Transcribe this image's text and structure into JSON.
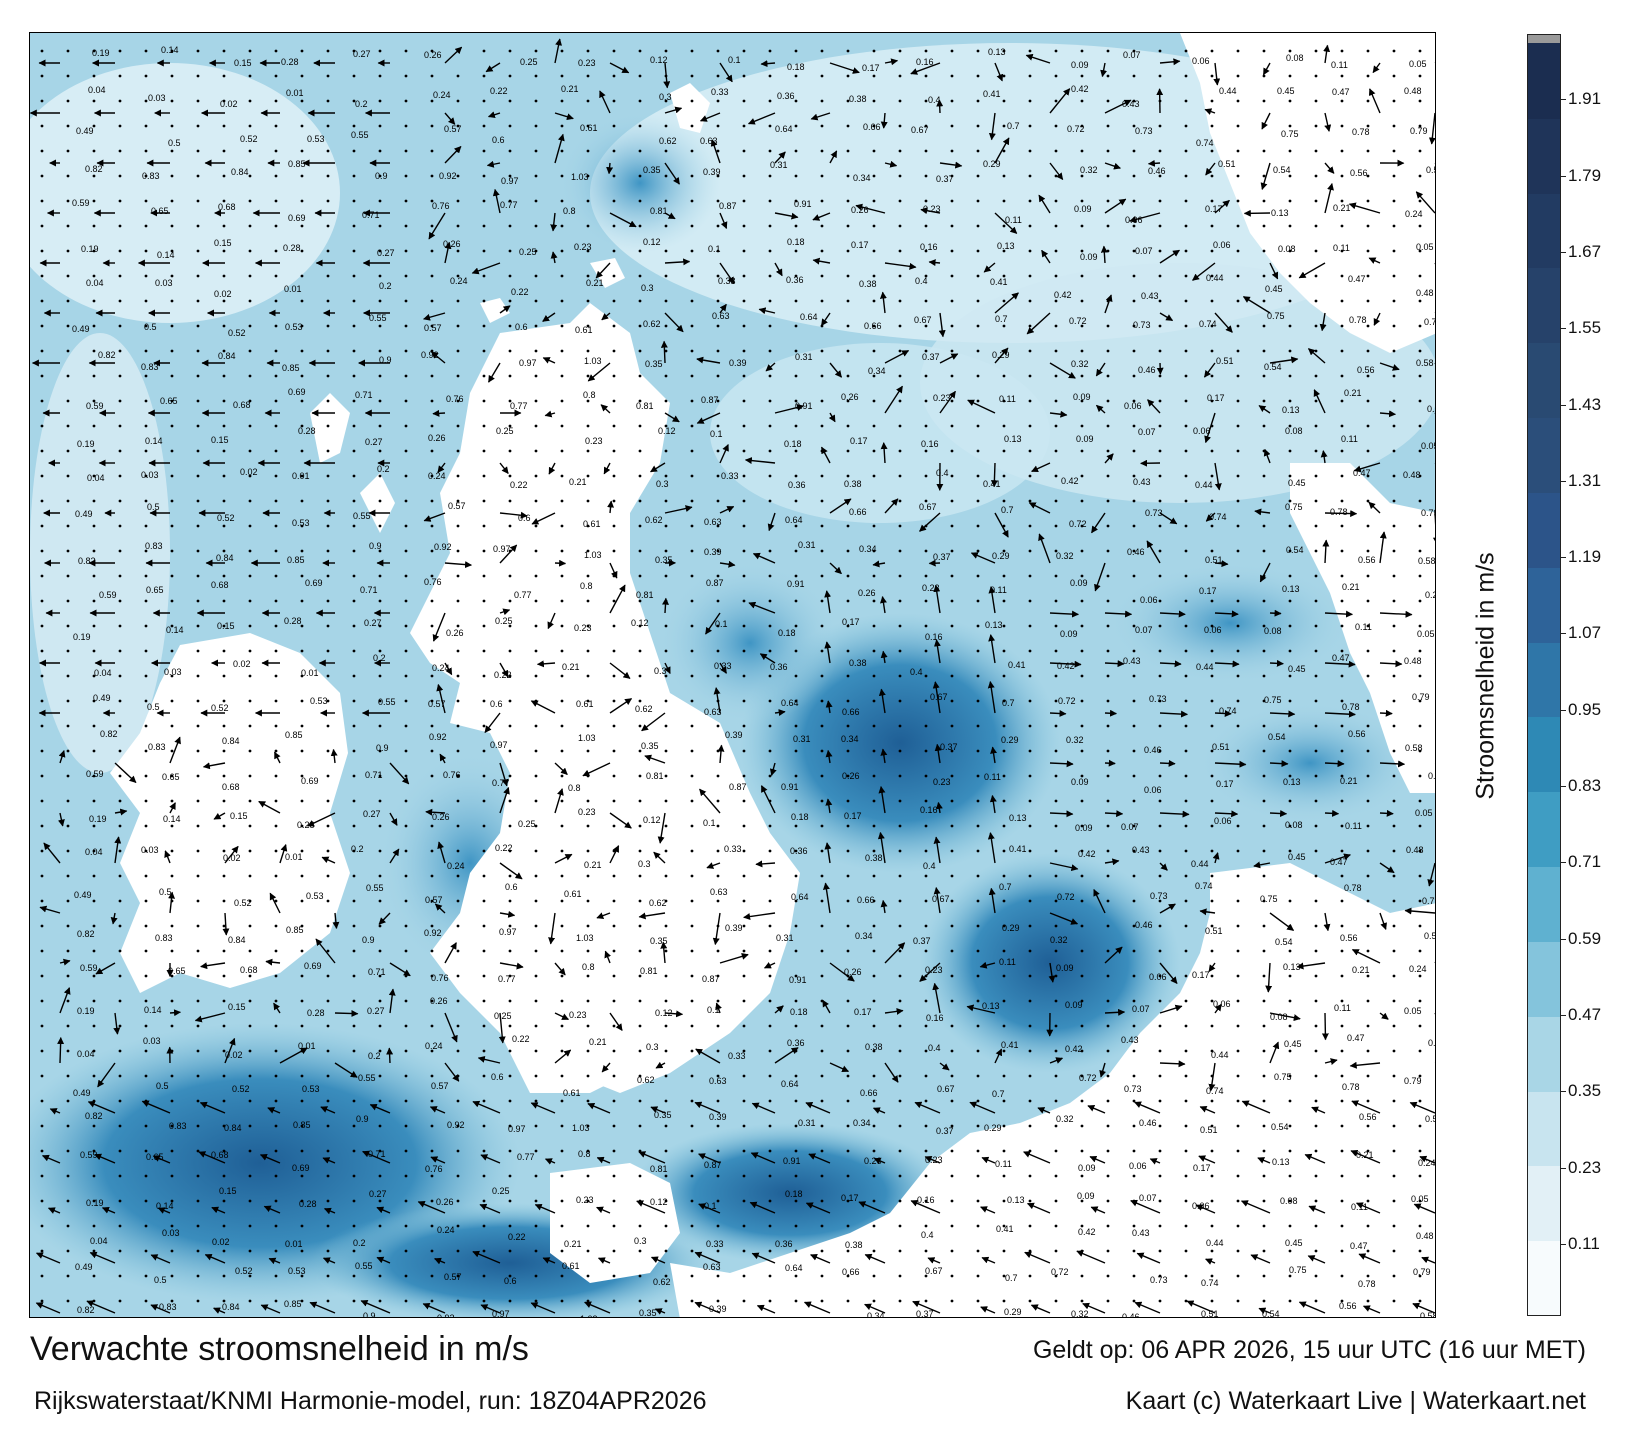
{
  "map": {
    "title": "Verwachte stroomsnelheid in m/s",
    "source": "Rijkswaterstaat/KNMI Harmonie-model, run: 18Z04APR2026",
    "valid_time": "Geldt op: 06 APR 2026, 15 uur UTC (16 uur MET)",
    "credit": "Kaart (c) Waterkaart Live | Waterkaart.net",
    "colors": {
      "land": "#ffffff",
      "frame": "#000000",
      "arrow": "#000000"
    },
    "sample_values": [
      "0.19",
      "0.14",
      "0.15",
      "0.28",
      "0.27",
      "0.26",
      "0.25",
      "0.23",
      "0.12",
      "0.1",
      "0.18",
      "0.17",
      "0.16",
      "0.13",
      "0.09",
      "0.07",
      "0.06",
      "0.08",
      "0.11",
      "0.05",
      "0.04",
      "0.03",
      "0.02",
      "0.01",
      "0.2",
      "0.24",
      "0.22",
      "0.21",
      "0.3",
      "0.33",
      "0.36",
      "0.38",
      "0.4",
      "0.41",
      "0.42",
      "0.43",
      "0.44",
      "0.45",
      "0.47",
      "0.48",
      "0.49",
      "0.5",
      "0.52",
      "0.53",
      "0.55",
      "0.57",
      "0.6",
      "0.61",
      "0.62",
      "0.63",
      "0.64",
      "0.66",
      "0.67",
      "0.7",
      "0.72",
      "0.73",
      "0.74",
      "0.75",
      "0.78",
      "0.79",
      "0.82",
      "0.83",
      "0.84",
      "0.85",
      "0.9",
      "0.92",
      "0.97",
      "1.03",
      "0.35",
      "0.39",
      "0.31",
      "0.34",
      "0.37",
      "0.29",
      "0.32",
      "0.46",
      "0.51",
      "0.54",
      "0.56",
      "0.58",
      "0.59",
      "0.65",
      "0.68",
      "0.69",
      "0.71",
      "0.76",
      "0.77",
      "0.8",
      "0.81",
      "0.87",
      "0.91",
      "0.26",
      "0.23",
      "0.11",
      "0.09",
      "0.06",
      "0.17",
      "0.13",
      "0.21",
      "0.24"
    ]
  },
  "colorbar": {
    "label": "Stroomsnelheid in m/s",
    "ticks": [
      "0.11",
      "0.23",
      "0.35",
      "0.47",
      "0.59",
      "0.71",
      "0.83",
      "0.95",
      "1.07",
      "1.19",
      "1.31",
      "1.43",
      "1.55",
      "1.67",
      "1.79",
      "1.91"
    ],
    "tick_values": [
      0.11,
      0.23,
      0.35,
      0.47,
      0.59,
      0.71,
      0.83,
      0.95,
      1.07,
      1.19,
      1.31,
      1.43,
      1.55,
      1.67,
      1.79,
      1.91
    ],
    "range": [
      0,
      2.0
    ],
    "band_colors": [
      "#f7fbfd",
      "#e2f0f6",
      "#c8e4ef",
      "#a9d6e6",
      "#84c4dc",
      "#5fb1d0",
      "#3f9dc3",
      "#2e89b5",
      "#2f76a8",
      "#2e6399",
      "#2c5489",
      "#2b4e7a",
      "#294a72",
      "#26426a",
      "#223b62",
      "#1f3459",
      "#1b2d50"
    ],
    "top_cap_color": "#9a9a9a"
  }
}
